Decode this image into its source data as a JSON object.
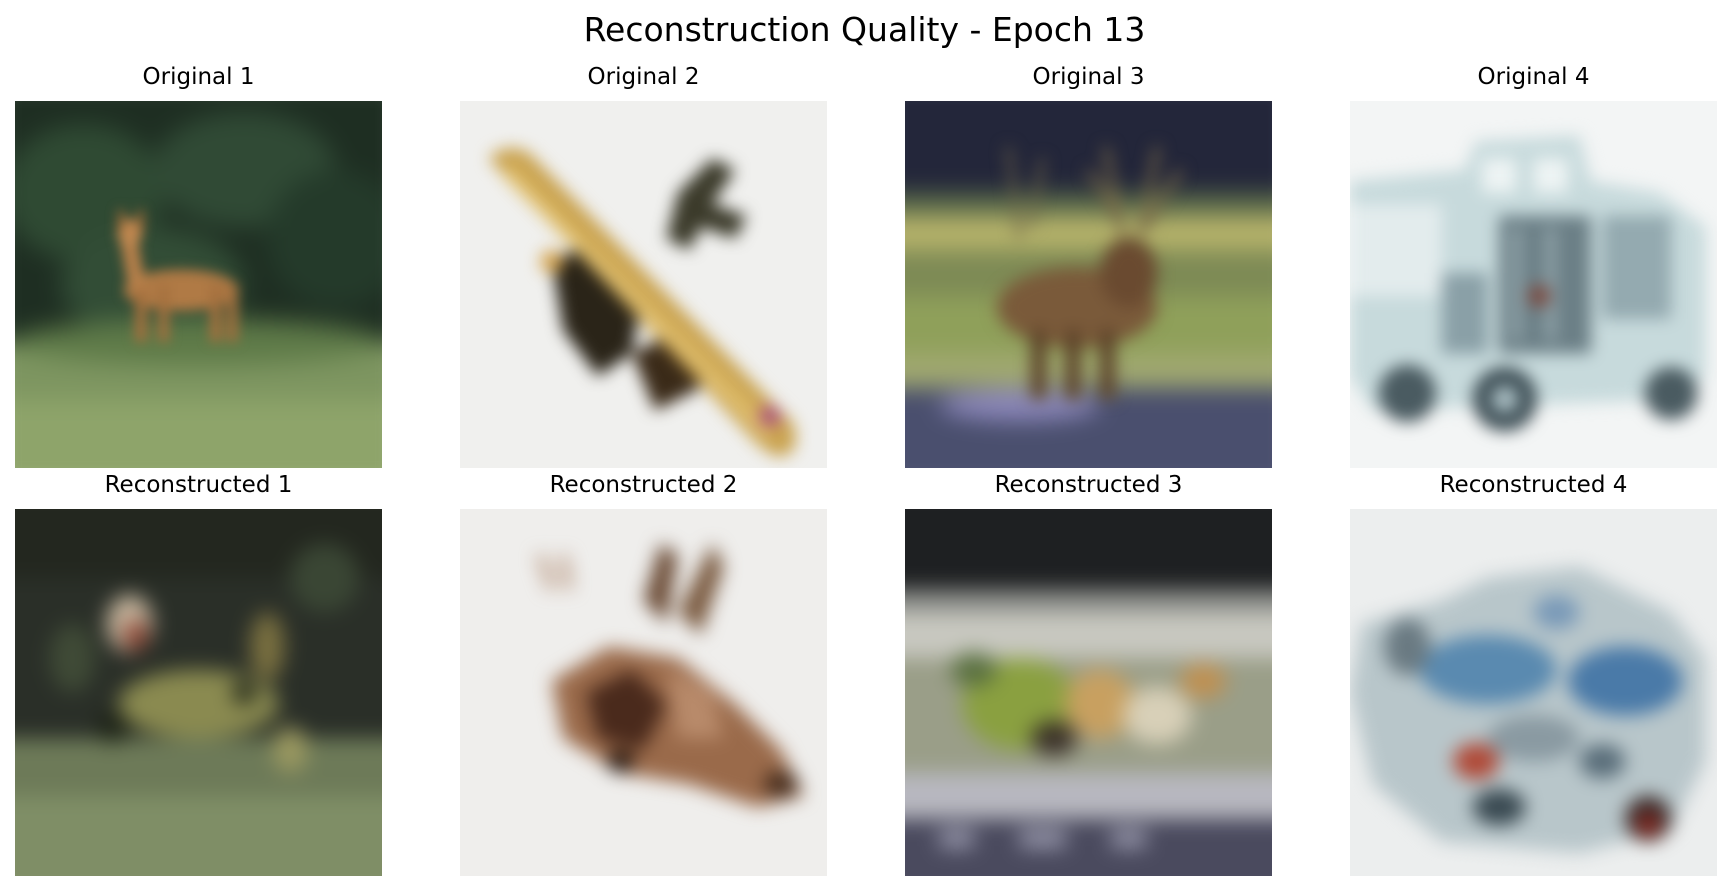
{
  "figure": {
    "suptitle": "Reconstruction Quality - Epoch 13"
  },
  "originals": [
    {
      "title": "Original 1",
      "subject": "deer in grass field"
    },
    {
      "title": "Original 2",
      "subject": "yellow airplane"
    },
    {
      "title": "Original 3",
      "subject": "deer/elk in field"
    },
    {
      "title": "Original 4",
      "subject": "pale blue truck"
    }
  ],
  "reconstructions": [
    {
      "title": "Reconstructed 1"
    },
    {
      "title": "Reconstructed 2"
    },
    {
      "title": "Reconstructed 3"
    },
    {
      "title": "Reconstructed 4"
    }
  ],
  "colors": {
    "background": "#ffffff",
    "text": "#000000"
  }
}
